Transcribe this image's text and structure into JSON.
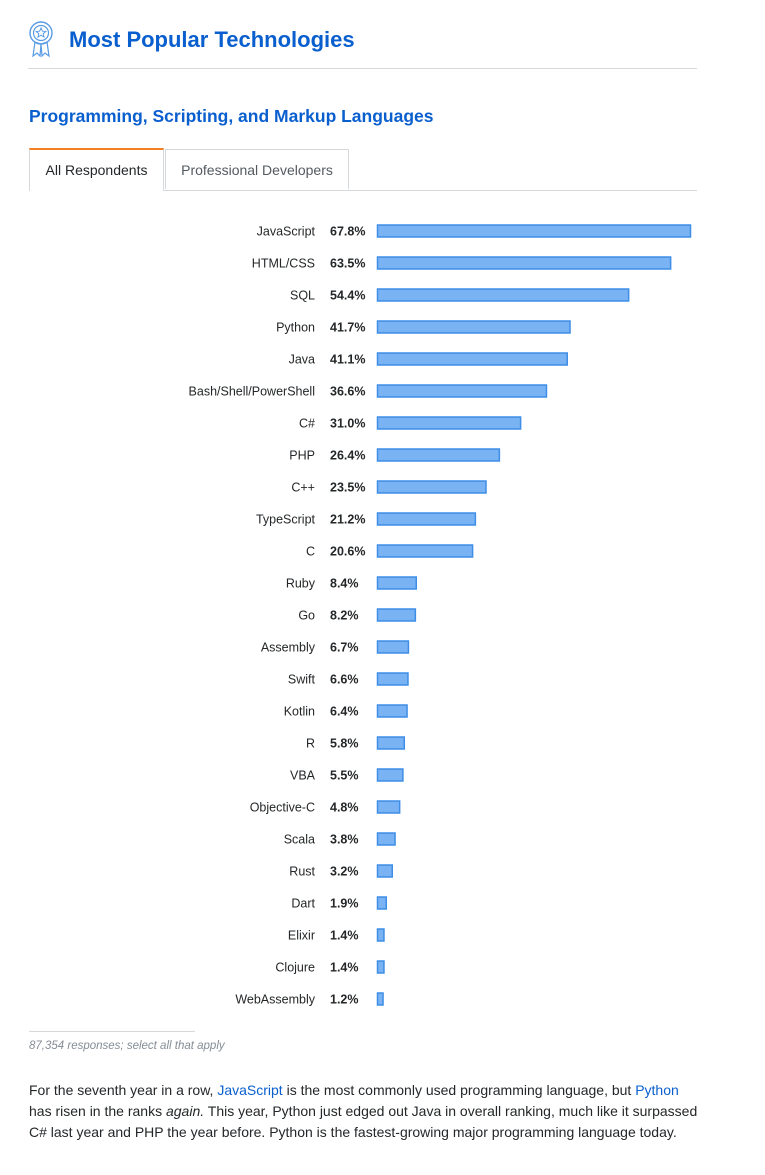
{
  "page": {
    "title": "Most Popular Technologies",
    "section_title": "Programming, Scripting, and Markup Languages"
  },
  "tabs": [
    {
      "label": "All Respondents",
      "active": true
    },
    {
      "label": "Professional Developers",
      "active": false
    }
  ],
  "colors": {
    "accent": "#0a5fcf",
    "tab_active_border": "#f48024",
    "bar_fill": "#79b3f4",
    "bar_stroke": "#3e8de6"
  },
  "chart_data": {
    "type": "bar",
    "orientation": "horizontal",
    "categories": [
      "JavaScript",
      "HTML/CSS",
      "SQL",
      "Python",
      "Java",
      "Bash/Shell/PowerShell",
      "C#",
      "PHP",
      "C++",
      "TypeScript",
      "C",
      "Ruby",
      "Go",
      "Assembly",
      "Swift",
      "Kotlin",
      "R",
      "VBA",
      "Objective-C",
      "Scala",
      "Rust",
      "Dart",
      "Elixir",
      "Clojure",
      "WebAssembly"
    ],
    "values": [
      67.8,
      63.5,
      54.4,
      41.7,
      41.1,
      36.6,
      31.0,
      26.4,
      23.5,
      21.2,
      20.6,
      8.4,
      8.2,
      6.7,
      6.6,
      6.4,
      5.8,
      5.5,
      4.8,
      3.8,
      3.2,
      1.9,
      1.4,
      1.4,
      1.2
    ],
    "value_labels": [
      "67.8%",
      "63.5%",
      "54.4%",
      "41.7%",
      "41.1%",
      "36.6%",
      "31.0%",
      "26.4%",
      "23.5%",
      "21.2%",
      "20.6%",
      "8.4%",
      "8.2%",
      "6.7%",
      "6.6%",
      "6.4%",
      "5.8%",
      "5.5%",
      "4.8%",
      "3.8%",
      "3.2%",
      "1.9%",
      "1.4%",
      "1.4%",
      "1.2%"
    ],
    "unit": "%",
    "grid": false,
    "legend": "none"
  },
  "footnote": "87,354 responses; select all that apply",
  "summary": {
    "p1": "For the seventh year in a row, ",
    "link1": "JavaScript",
    "p2": " is the most commonly used programming language, but ",
    "link2": "Python",
    "p3": " has risen in the ranks ",
    "emphasis": "again.",
    "p4": " This year, Python just edged out Java in overall ranking, much like it surpassed C# last year and PHP the year before. Python is the fastest-growing major programming language today."
  }
}
